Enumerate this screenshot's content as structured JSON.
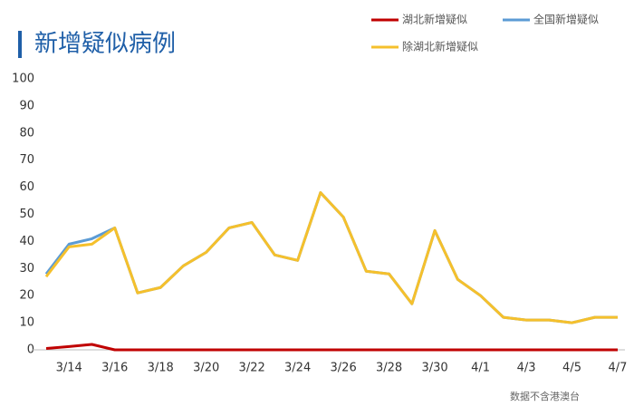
{
  "chart_data": {
    "type": "line",
    "title": "新增疑似病例",
    "footnote": "数据不含港澳台",
    "categories": [
      null,
      "3/14",
      null,
      "3/16",
      null,
      "3/18",
      null,
      "3/20",
      null,
      "3/22",
      null,
      "3/24",
      null,
      "3/26",
      null,
      "3/28",
      null,
      "3/30",
      null,
      "4/1",
      null,
      "4/3",
      null,
      "4/5",
      null,
      "4/7"
    ],
    "series": [
      {
        "name": "湖北新增疑似",
        "color": "#c00000",
        "values": [
          0.5,
          1.2,
          2,
          0,
          0,
          0,
          0,
          0,
          0,
          0,
          0,
          0,
          0,
          0,
          0,
          0,
          0,
          0,
          0,
          0,
          0,
          0,
          0,
          0,
          0,
          0
        ]
      },
      {
        "name": "全国新增疑似",
        "color": "#5b9bd5",
        "values": [
          28,
          39,
          41,
          45,
          21,
          23,
          31,
          36,
          45,
          47,
          35,
          33,
          58,
          49,
          29,
          28,
          17,
          44,
          26,
          20,
          12,
          11,
          11,
          10,
          12,
          12
        ]
      },
      {
        "name": "除湖北新增疑似",
        "color": "#f5c02c",
        "values": [
          27,
          38,
          39,
          45,
          21,
          23,
          31,
          36,
          45,
          47,
          35,
          33,
          58,
          49,
          29,
          28,
          17,
          44,
          26,
          20,
          12,
          11,
          11,
          10,
          12,
          12
        ]
      }
    ],
    "ylim": [
      0,
      100
    ],
    "yticks": [
      0,
      10,
      20,
      30,
      40,
      50,
      60,
      70,
      80,
      90,
      100
    ],
    "grid": false
  }
}
